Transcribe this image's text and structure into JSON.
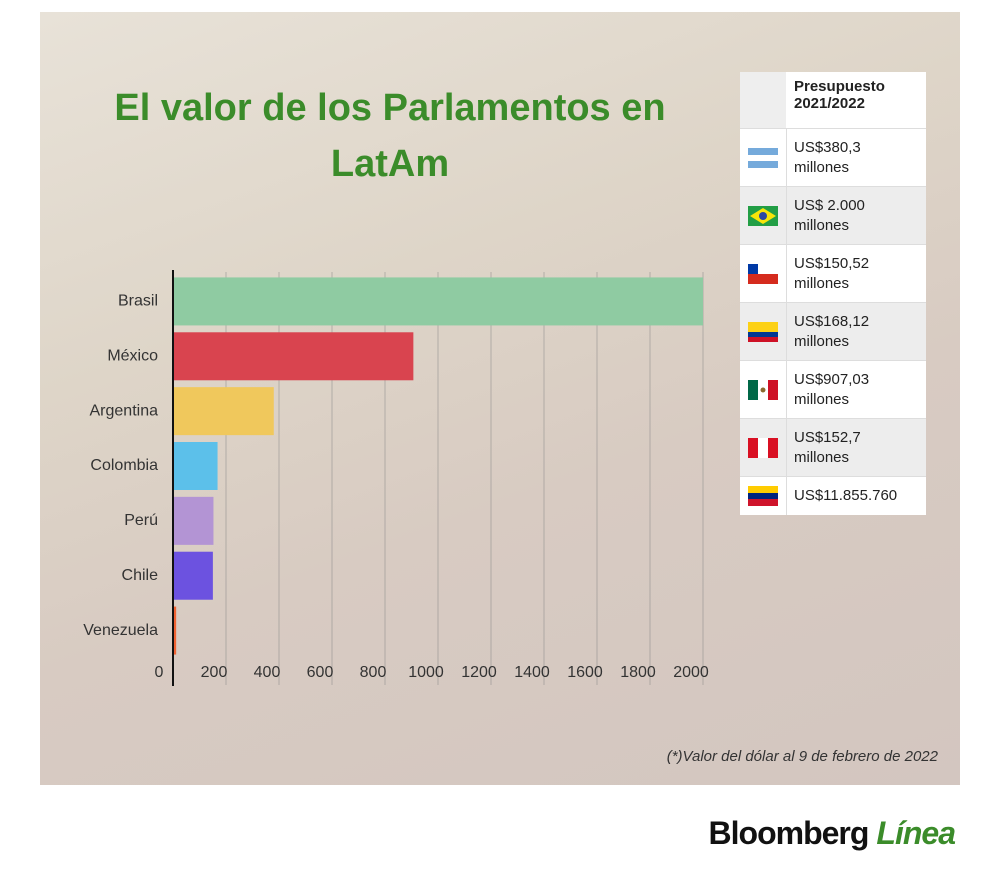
{
  "chart_data": {
    "type": "bar",
    "orientation": "horizontal",
    "title": "El valor de los Parlamentos en LatAm",
    "categories": [
      "Brasil",
      "México",
      "Argentina",
      "Colombia",
      "Perú",
      "Chile",
      "Venezuela"
    ],
    "values": [
      2000,
      907.03,
      380.3,
      168.12,
      152.7,
      150.52,
      11.86
    ],
    "colors": [
      "#8fcba2",
      "#d9444f",
      "#f0c85c",
      "#5cc0ea",
      "#b394d4",
      "#6c52e0",
      "#f06232"
    ],
    "xlim": [
      0,
      2000
    ],
    "xticks": [
      0,
      200,
      400,
      600,
      800,
      1000,
      1200,
      1400,
      1600,
      1800,
      2000
    ],
    "grid": true,
    "footnote": "(*)Valor del dólar al 9 de febrero de 2022"
  },
  "table": {
    "header": "Presupuesto 2021/2022",
    "rows": [
      "US$380,3 millones",
      "US$ 2.000 millones",
      "US$150,52 millones",
      "US$168,12 millones",
      "US$907,03 millones",
      "US$152,7 millones",
      "US$11.855.760"
    ]
  },
  "brand": {
    "name": "Bloomberg",
    "suffix": "Línea"
  }
}
